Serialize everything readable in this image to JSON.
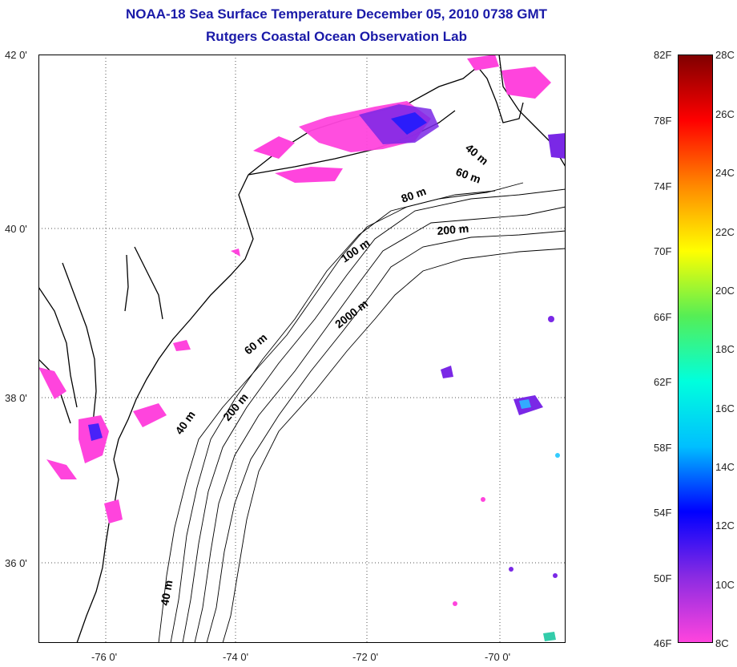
{
  "title": "NOAA-18 Sea Surface Temperature December 05, 2010 0738 GMT",
  "subtitle": "Rutgers Coastal Ocean Observation Lab",
  "map": {
    "lat_labels": [
      "42 0'",
      "40 0'",
      "38 0'",
      "36 0'"
    ],
    "lon_labels": [
      "-76 0'",
      "-74 0'",
      "-72 0'",
      "-70 0'"
    ],
    "lat_range": [
      35,
      42
    ],
    "lon_range": [
      -77,
      -69
    ],
    "isobath_labels": [
      "40 m",
      "60 m",
      "80 m",
      "200 m",
      "100 m",
      "2000 m",
      "60 m",
      "40 m",
      "200 m",
      "40 m"
    ]
  },
  "colorbar": {
    "fahrenheit_labels": [
      "82F",
      "78F",
      "74F",
      "70F",
      "66F",
      "62F",
      "58F",
      "54F",
      "50F",
      "46F"
    ],
    "celsius_labels": [
      "28C",
      "26C",
      "24C",
      "22C",
      "20C",
      "18C",
      "16C",
      "14C",
      "12C",
      "10C",
      "8C"
    ],
    "range_c": [
      8,
      28
    ],
    "colors": [
      "#ff44dd",
      "#8a2be2",
      "#0000ff",
      "#00bfff",
      "#00ffdd",
      "#55ee55",
      "#ffff00",
      "#ff8800",
      "#ff0000",
      "#800000"
    ]
  }
}
